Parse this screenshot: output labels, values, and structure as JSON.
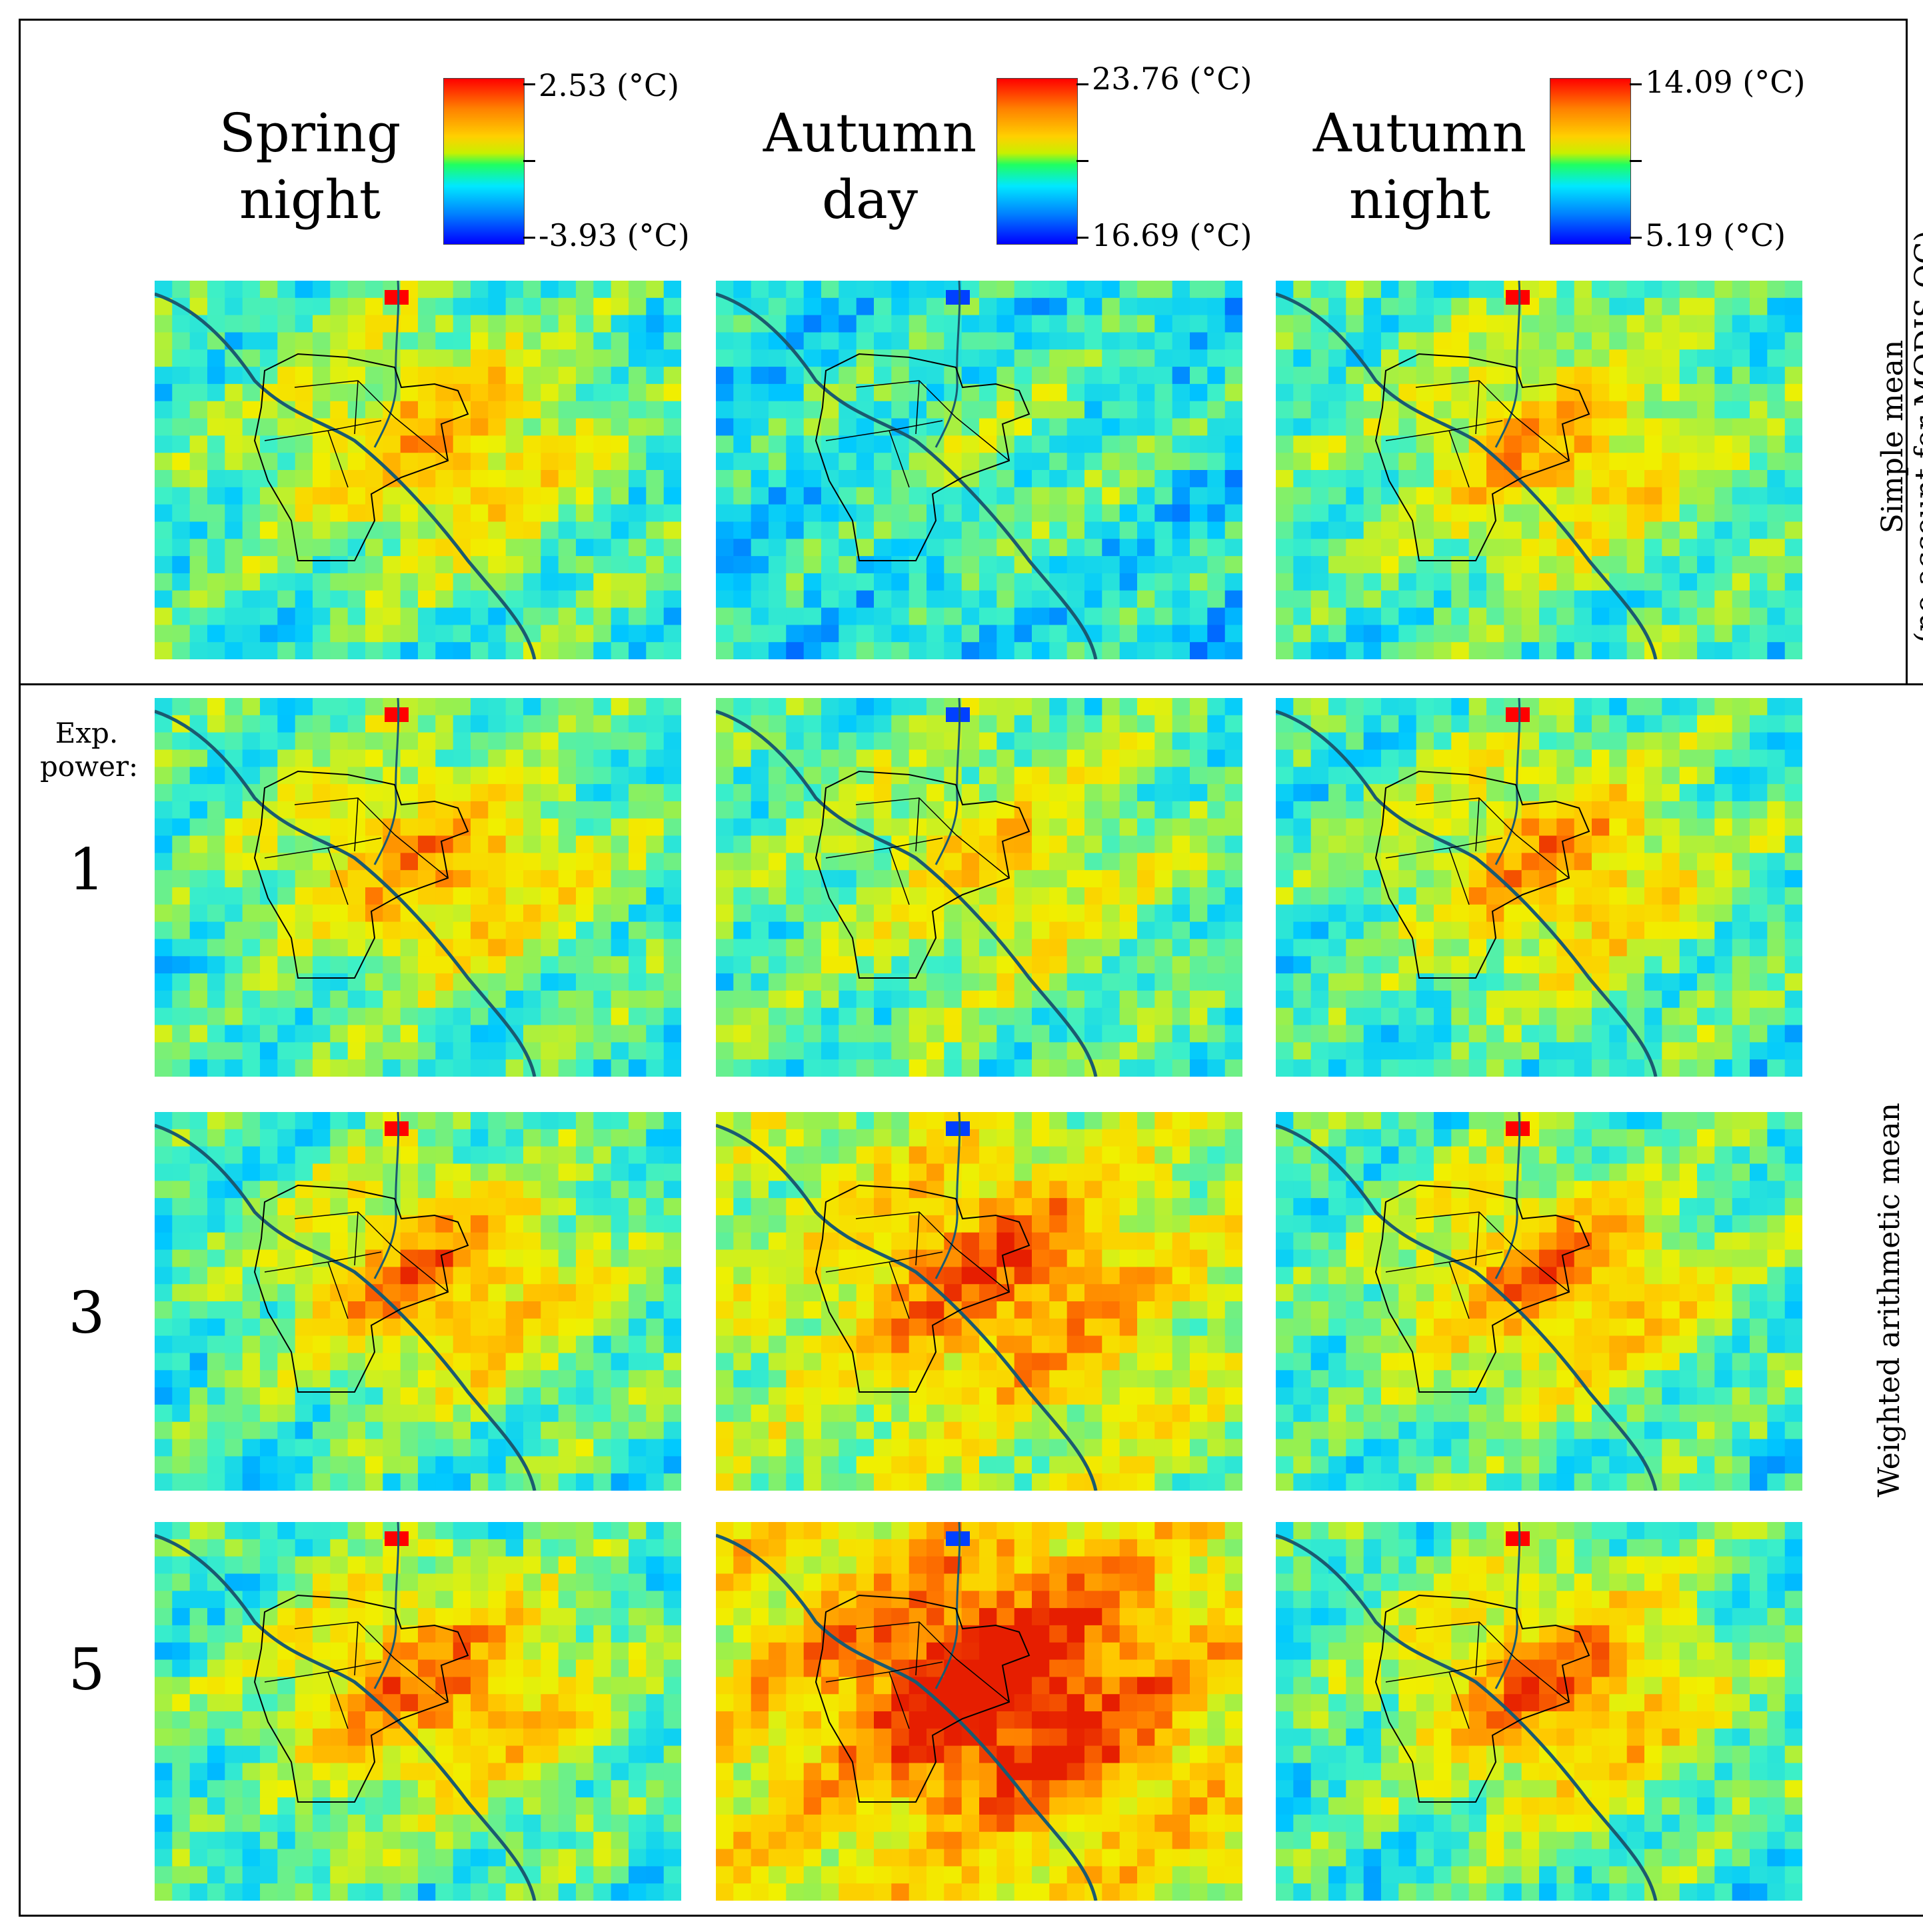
{
  "columns": [
    {
      "title_line1": "Spring",
      "title_line2": "night",
      "max_label": "2.53 (°C)",
      "min_label": "-3.93 (°C)",
      "day": false
    },
    {
      "title_line1": "Autumn",
      "title_line2": "day",
      "max_label": "23.76 (°C)",
      "min_label": "16.69 (°C)",
      "day": true
    },
    {
      "title_line1": "Autumn",
      "title_line2": "night",
      "max_label": "14.09 (°C)",
      "min_label": "5.19 (°C)",
      "day": false
    }
  ],
  "top_side_label": {
    "line1": "Simple mean",
    "line2": "(no account for MODIS QC)"
  },
  "bottom_side_label": "Weighted arithmetic mean",
  "exp_label": {
    "line1": "Exp.",
    "line2": "power:"
  },
  "row_labels": [
    "1",
    "3",
    "5"
  ],
  "rows": [
    {
      "label": "",
      "intensity": 0.0
    },
    {
      "label": "1",
      "intensity": 0.25
    },
    {
      "label": "3",
      "intensity": 0.55
    },
    {
      "label": "5",
      "intensity": 0.85
    }
  ],
  "colors": {
    "hot": "#ff0000",
    "cold": "#0000ff",
    "boundary": "#000000",
    "river": "#1a5a70"
  }
}
